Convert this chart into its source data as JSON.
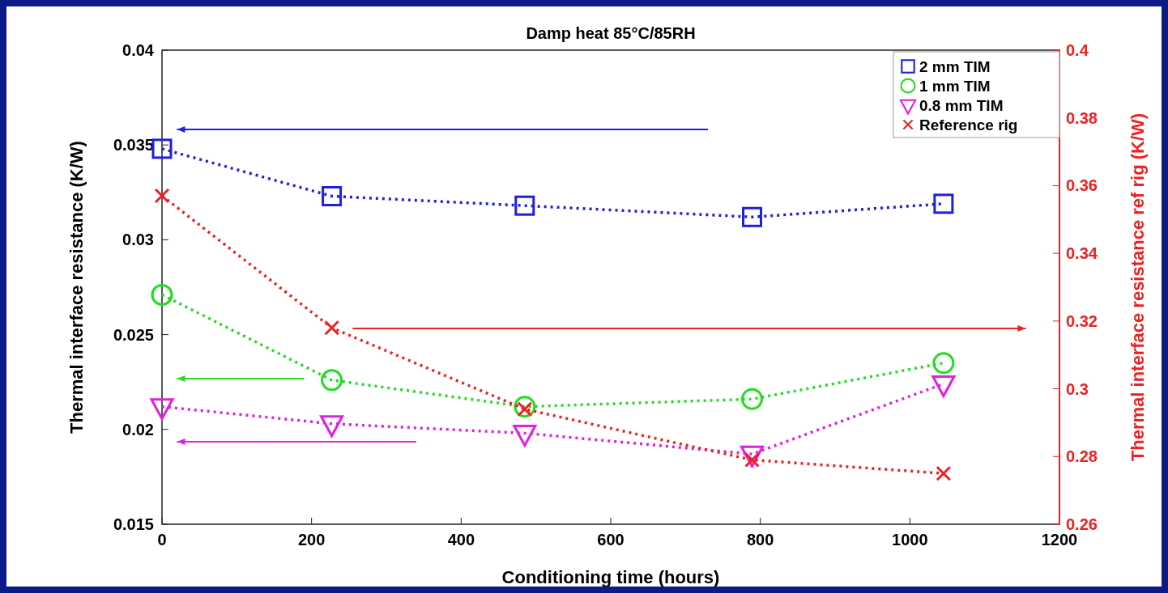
{
  "chart_data": {
    "type": "line",
    "title": "Damp heat 85°C/85RH",
    "xlabel": "Conditioning time (hours)",
    "ylabel": "Thermal interface resistance (K/W)",
    "y2label": "Thermal interface resistance ref rig (K/W)",
    "x": [
      0,
      227,
      485,
      789,
      1045
    ],
    "xlim": [
      0,
      1200
    ],
    "xticks": [
      0,
      200,
      400,
      600,
      800,
      1000,
      1200
    ],
    "ylim": [
      0.015,
      0.04
    ],
    "yticks": [
      0.015,
      0.02,
      0.025,
      0.03,
      0.035,
      0.04
    ],
    "y2lim": [
      0.26,
      0.4
    ],
    "y2ticks": [
      0.26,
      0.28,
      0.3,
      0.32,
      0.34,
      0.36,
      0.38,
      0.4
    ],
    "grid": false,
    "legend": "top right",
    "line_style": "dotted",
    "series": [
      {
        "name": "2 mm TIM",
        "color": "#1f1fe0",
        "marker": "square",
        "values": [
          0.0348,
          0.0323,
          0.0318,
          0.0312,
          0.0319
        ]
      },
      {
        "name": "1 mm TIM",
        "color": "#22dd22",
        "marker": "circle",
        "values": [
          0.0271,
          0.0226,
          0.0212,
          0.0216,
          0.0235
        ]
      },
      {
        "name": "0.8 mm TIM",
        "color": "#e020e0",
        "marker": "triangle",
        "values": [
          0.0212,
          0.0203,
          0.0198,
          0.0187,
          0.0224
        ]
      },
      {
        "name": "Reference rig",
        "color": "#ee2020",
        "marker": "cross",
        "axis": "y2",
        "values": [
          0.357,
          0.318,
          0.294,
          0.279,
          0.275
        ]
      }
    ]
  }
}
